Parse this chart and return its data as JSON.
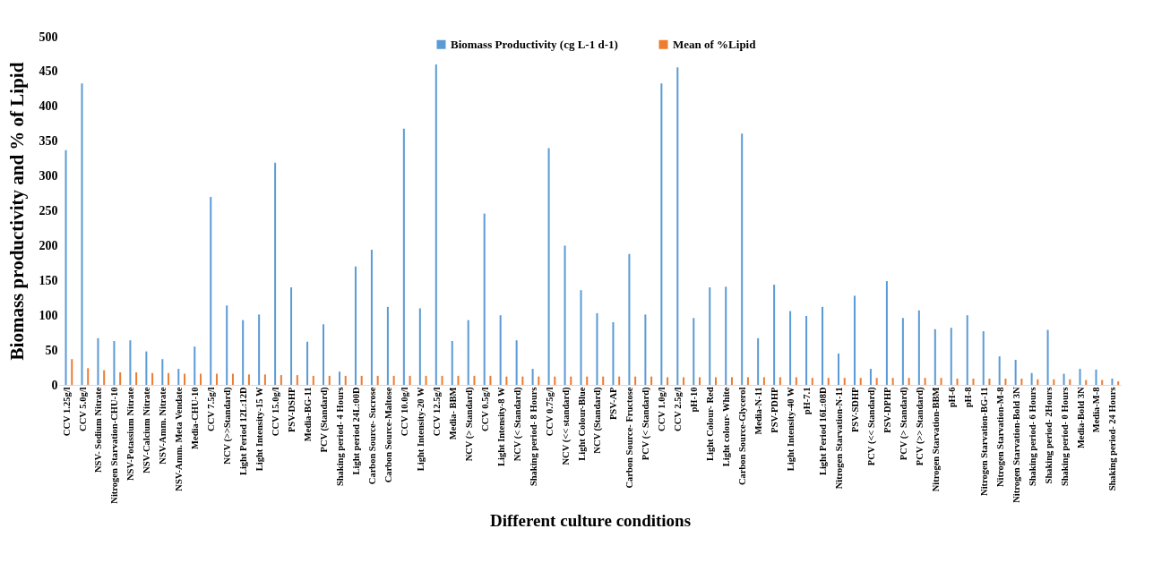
{
  "chart_data": {
    "type": "bar",
    "xlabel": "Different culture conditions",
    "ylabel": "Biomass productivity and % of Lipid",
    "categories": [
      "CCV 1.25g/l",
      "CCV 5.0g/l",
      "NSV- Sodium Nitrate",
      "Nitrogen Starvation-CHU-10",
      "NSV-Potassium Nitrate",
      "NSV-Calcium Nitrate",
      "NSV-Amm. Nitrate",
      "NSV-Amm. Meta Vendate",
      "Media-CHU-10",
      "CCV 7.5g/l",
      "NCV (>>Standard)",
      "Light Period 12L:12D",
      "Light Intensity-15 W",
      "CCV 15.0g/l",
      "PSV-DSHP",
      "Media-BG-11",
      "PCV (Standard)",
      "Shaking period- 4 Hours",
      "Light period 24L:00D",
      "Carbon Source- Sucrose",
      "Carbon Source-Maltose",
      "CCV 10.0g/l",
      "Light Intensity-20 W",
      "CCV 12.5g/l",
      "Media- BBM",
      "NCV (> Standard)",
      "CCV 0.5g/l",
      "Light Intensity-8 W",
      "NCV (< Standard)",
      "Shaking period- 8 Hours",
      "CCV 0.75g/l",
      "NCV (<< standard)",
      "Light Colour-Blue",
      "NCV (Standard)",
      "PSV-AP",
      "Carbon Source- Fructose",
      "PCV (< Standard)",
      "CCV 1.0g/l",
      "CCV 2.5g/l",
      "pH-10",
      "Light Colour- Red",
      "Light colour- White",
      "Carbon Source-Glycerol",
      "Media-N-11",
      "PSV-PDHP",
      "Light Intensity-40 W",
      "pH-7.1",
      "Light Period 16L:08D",
      "Nitrogen Starvation-N-11",
      "PSV-SDHP",
      "PCV (<< Standard)",
      "PSV-DPHP",
      "PCV (> Standard)",
      "PCV (>> Standard)",
      "Nitrogen Starvation-BBM",
      "pH-6",
      "pH-8",
      "Nitrogen Starvation-BG-11",
      "Nitrogen Starvation-M-8",
      "Nitrogen Starvation-Bold 3N",
      "Shaking period- 6 Hours",
      "Shaking period- 2Hours",
      "Shaking period- 0 Hours",
      "Media-Bold 3N",
      "Media-M-8",
      "Shaking period- 24 Hours"
    ],
    "series": [
      {
        "name": "Biomass Productivity  (cg L-1 d-1)",
        "color": "#5b9bd5",
        "values": [
          337,
          433,
          67,
          63,
          64,
          48,
          37,
          23,
          55,
          270,
          114,
          93,
          101,
          319,
          140,
          62,
          87,
          19,
          170,
          194,
          112,
          368,
          110,
          460,
          63,
          93,
          246,
          100,
          64,
          23,
          340,
          200,
          136,
          103,
          90,
          188,
          101,
          433,
          456,
          96,
          140,
          141,
          361,
          67,
          144,
          106,
          99,
          112,
          45,
          128,
          23,
          149,
          96,
          107,
          80,
          82,
          100,
          77,
          41,
          36,
          17,
          79,
          16,
          23,
          22,
          9
        ]
      },
      {
        "name": "Mean of %Lipid",
        "color": "#ed7d31",
        "values": [
          37,
          24,
          21,
          18,
          18,
          17,
          17,
          16,
          16,
          16,
          16,
          15,
          15,
          14,
          14,
          13,
          13,
          13,
          13,
          13,
          13,
          13,
          13,
          13,
          13,
          13,
          13,
          12,
          12,
          12,
          12,
          12,
          12,
          12,
          12,
          12,
          12,
          11,
          11,
          11,
          11,
          11,
          11,
          11,
          11,
          11,
          10,
          10,
          10,
          10,
          10,
          10,
          10,
          10,
          10,
          9,
          9,
          9,
          9,
          9,
          8,
          8,
          8,
          7,
          7,
          5
        ]
      }
    ],
    "ylim": [
      0,
      500
    ],
    "yticks": [
      0,
      50,
      100,
      150,
      200,
      250,
      300,
      350,
      400,
      450,
      500
    ],
    "grid": false,
    "legend": "top"
  }
}
